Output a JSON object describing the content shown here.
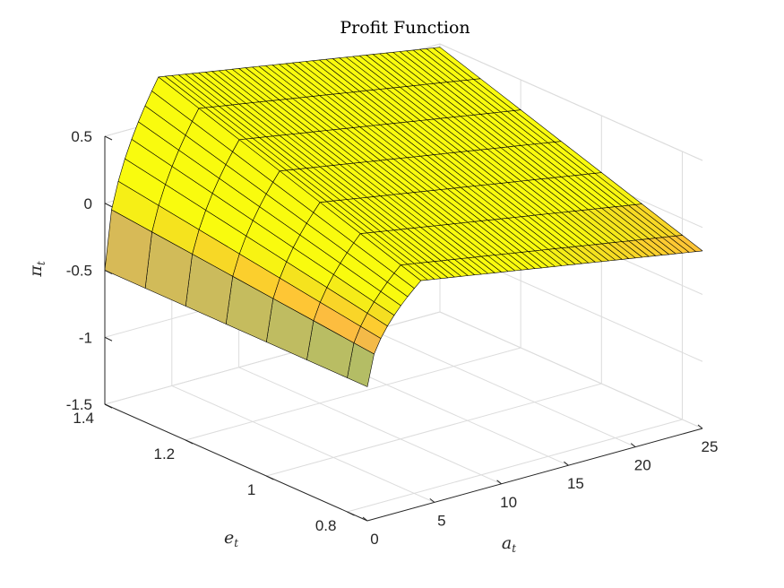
{
  "chart_data": {
    "type": "surface",
    "title": "Profit Function",
    "xlabel": "a",
    "xlabel_sub": "t",
    "ylabel": "e",
    "ylabel_sub": "t",
    "zlabel": "π",
    "zlabel_sub": "t",
    "xlim": [
      0,
      25
    ],
    "ylim": [
      0.75,
      1.4
    ],
    "zlim": [
      -1.5,
      0.5
    ],
    "x_ticks": [
      "0",
      "5",
      "10",
      "15",
      "20",
      "25"
    ],
    "y_ticks": [
      "0.8",
      "1",
      "1.2",
      "1.4"
    ],
    "z_ticks": [
      "-1.5",
      "-1",
      "-0.5",
      "0",
      "0.5"
    ],
    "grid": true,
    "colormap": "parula",
    "a_grid": [
      0,
      0.5,
      1,
      1.5,
      2,
      2.5,
      3,
      3.5,
      4,
      4.5,
      5,
      5.5,
      6,
      6.5,
      7,
      7.5,
      8,
      8.5,
      9,
      9.5,
      10,
      10.5,
      11,
      11.5,
      12,
      12.5,
      13,
      13.5,
      14,
      14.5,
      15,
      15.5,
      16,
      16.5,
      17,
      17.5,
      18,
      18.5,
      19,
      19.5,
      20,
      20.5,
      21,
      21.5,
      22,
      22.5,
      23,
      23.5,
      24,
      24.5,
      25
    ],
    "e_grid": [
      0.75,
      0.8,
      0.9,
      1.0,
      1.1,
      1.2,
      1.3,
      1.4
    ],
    "surface_model": "pi = min(e*(a/4)^0.55 - 0.5 - 0.017*a, e - 0.5 - 0.017*a)",
    "colors": {
      "background": "#ffffff",
      "grid": "#dcdcdc",
      "edge": "#000000"
    }
  }
}
